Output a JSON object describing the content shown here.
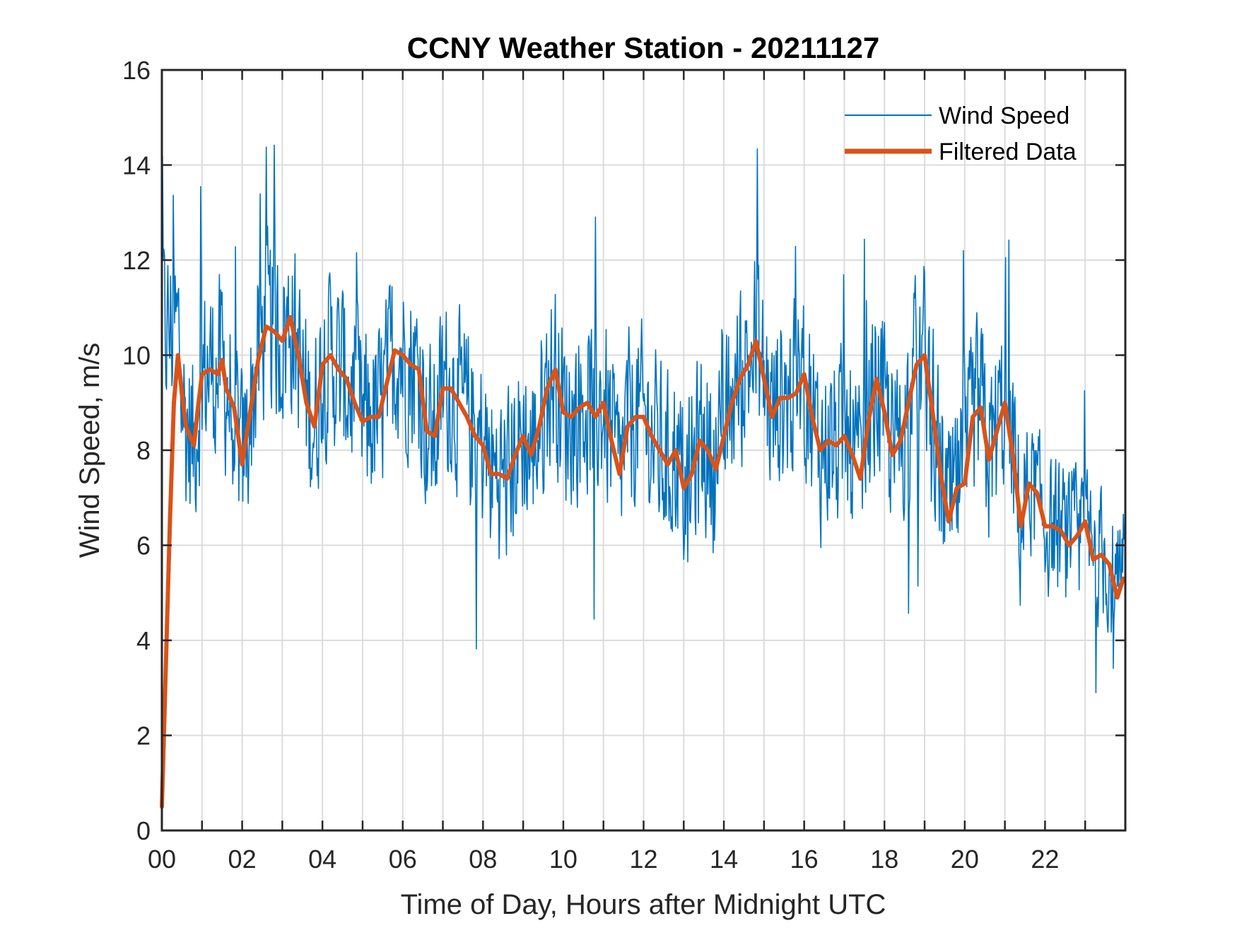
{
  "chart_data": {
    "type": "line",
    "title": "CCNY Weather Station - 20211127",
    "xlabel": "Time of Day, Hours after Midnight UTC",
    "ylabel": "Wind Speed, m/s",
    "xlim": [
      0,
      24
    ],
    "ylim": [
      0,
      16
    ],
    "xticks": [
      0,
      2,
      4,
      6,
      8,
      10,
      12,
      14,
      16,
      18,
      20,
      22
    ],
    "xtick_labels": [
      "00",
      "02",
      "04",
      "06",
      "08",
      "10",
      "12",
      "14",
      "16",
      "18",
      "20",
      "22"
    ],
    "xgrid_step_hours": 1,
    "yticks": [
      0,
      2,
      4,
      6,
      8,
      10,
      12,
      14,
      16
    ],
    "ytick_labels": [
      "0",
      "2",
      "4",
      "6",
      "8",
      "10",
      "12",
      "14",
      "16"
    ],
    "grid": true,
    "legend_position": "top-right",
    "series": [
      {
        "name": "Wind Speed",
        "color": "#0072BD",
        "style": "thin",
        "noise_amplitude": 2.2,
        "samples_per_hour": 60,
        "observed_max": 15.3,
        "observed_min": 2.9,
        "note": "raw 1-minute samples fluctuate around the filtered curve"
      },
      {
        "name": "Filtered Data",
        "color": "#D95319",
        "style": "thick",
        "x": [
          0.0,
          0.1,
          0.2,
          0.3,
          0.4,
          0.5,
          0.6,
          0.7,
          0.8,
          0.9,
          1.0,
          1.2,
          1.4,
          1.5,
          1.6,
          1.8,
          2.0,
          2.2,
          2.4,
          2.6,
          2.8,
          3.0,
          3.2,
          3.4,
          3.6,
          3.8,
          4.0,
          4.2,
          4.4,
          4.6,
          4.8,
          5.0,
          5.2,
          5.4,
          5.6,
          5.8,
          6.0,
          6.2,
          6.4,
          6.6,
          6.8,
          7.0,
          7.2,
          7.4,
          7.6,
          7.8,
          8.0,
          8.2,
          8.4,
          8.6,
          8.8,
          9.0,
          9.2,
          9.4,
          9.6,
          9.8,
          10.0,
          10.2,
          10.4,
          10.6,
          10.8,
          11.0,
          11.2,
          11.4,
          11.6,
          11.8,
          12.0,
          12.2,
          12.4,
          12.6,
          12.8,
          13.0,
          13.2,
          13.4,
          13.6,
          13.8,
          14.0,
          14.2,
          14.4,
          14.6,
          14.8,
          15.0,
          15.2,
          15.4,
          15.6,
          15.8,
          16.0,
          16.2,
          16.4,
          16.6,
          16.8,
          17.0,
          17.2,
          17.4,
          17.6,
          17.8,
          18.0,
          18.2,
          18.4,
          18.6,
          18.8,
          19.0,
          19.2,
          19.4,
          19.6,
          19.8,
          20.0,
          20.2,
          20.4,
          20.6,
          20.8,
          21.0,
          21.2,
          21.4,
          21.6,
          21.8,
          22.0,
          22.2,
          22.4,
          22.6,
          22.8,
          23.0,
          23.2,
          23.4,
          23.6,
          23.8,
          23.95
        ],
        "values": [
          0.5,
          3.5,
          6.5,
          9.0,
          10.0,
          9.2,
          8.5,
          8.3,
          8.1,
          8.9,
          9.6,
          9.7,
          9.6,
          9.9,
          9.3,
          8.9,
          7.7,
          8.8,
          9.9,
          10.6,
          10.5,
          10.3,
          10.8,
          10.0,
          9.0,
          8.5,
          9.8,
          10.0,
          9.7,
          9.5,
          9.0,
          8.6,
          8.7,
          8.7,
          9.4,
          10.1,
          10.0,
          9.8,
          9.7,
          8.4,
          8.3,
          9.3,
          9.3,
          9.0,
          8.7,
          8.3,
          8.1,
          7.5,
          7.5,
          7.4,
          7.9,
          8.3,
          7.9,
          8.5,
          9.3,
          9.7,
          8.8,
          8.7,
          8.9,
          9.0,
          8.7,
          9.0,
          8.2,
          7.5,
          8.5,
          8.7,
          8.7,
          8.3,
          8.0,
          7.7,
          8.0,
          7.2,
          7.5,
          8.2,
          8.0,
          7.6,
          8.3,
          9.0,
          9.5,
          9.8,
          10.3,
          9.5,
          8.7,
          9.1,
          9.1,
          9.2,
          9.6,
          8.7,
          8.0,
          8.2,
          8.1,
          8.3,
          7.9,
          7.4,
          8.6,
          9.5,
          8.8,
          7.9,
          8.2,
          9.0,
          9.8,
          10.0,
          8.8,
          7.5,
          6.5,
          7.2,
          7.3,
          8.7,
          8.9,
          7.8,
          8.4,
          9.0,
          7.9,
          6.4,
          7.3,
          7.1,
          6.4,
          6.4,
          6.3,
          6.0,
          6.2,
          6.5,
          5.7,
          5.8,
          5.6,
          4.9,
          5.3
        ]
      }
    ]
  }
}
